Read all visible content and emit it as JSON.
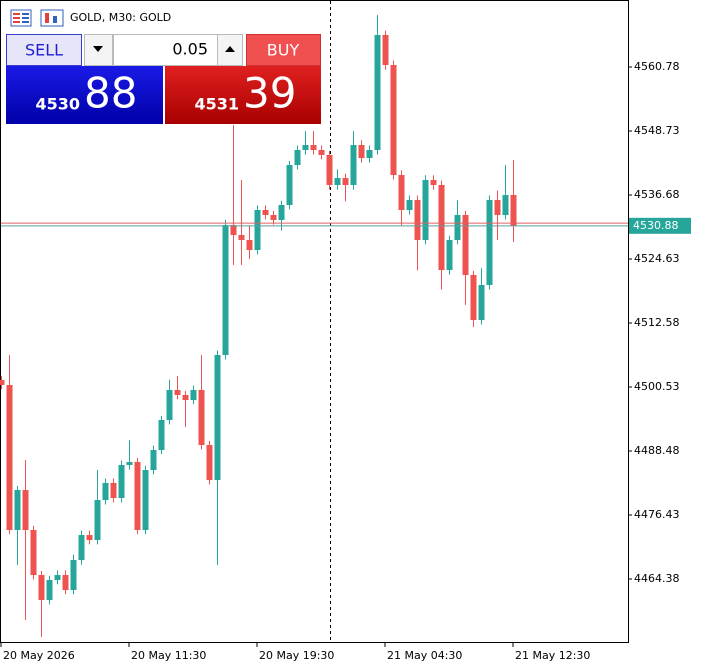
{
  "chart_data": {
    "type": "candlestick",
    "title": "GOLD, M30:  GOLD",
    "categories": [
      "20 May 2026",
      null,
      null,
      null,
      null,
      null,
      null,
      null,
      null,
      null,
      null,
      null,
      null,
      null,
      null,
      null,
      "20 May 11:30",
      null,
      null,
      null,
      null,
      null,
      null,
      null,
      null,
      null,
      null,
      null,
      null,
      null,
      null,
      null,
      "20 May 19:30",
      null,
      null,
      null,
      null,
      null,
      null,
      null,
      null,
      null,
      null,
      null,
      null,
      null,
      null,
      null,
      "21 May 04:30",
      null,
      null,
      null,
      null,
      null,
      null,
      null,
      null,
      null,
      null,
      null,
      null,
      null,
      null,
      null,
      "21 May 12:30"
    ],
    "open": [
      4501.85,
      4500.91,
      4473.61,
      4481.14,
      4473.61,
      4465.13,
      4460.43,
      4464.19,
      4465.13,
      4462.31,
      4467.96,
      4472.66,
      4471.72,
      4479.25,
      4482.46,
      4479.63,
      4485.85,
      4486.41,
      4473.61,
      4484.9,
      4488.67,
      4494.32,
      4499.97,
      4499.03,
      4498.08,
      4499.97,
      4489.61,
      4483.02,
      4506.56,
      4531.03,
      4529.15,
      4528.21,
      4526.33,
      4533.86,
      4532.92,
      4531.98,
      4534.8,
      4542.33,
      4545.16,
      4546.1,
      4545.16,
      4544.22,
      4538.57,
      4539.88,
      4538.57,
      4546.1,
      4543.65,
      4545.16,
      4566.81,
      4561.16,
      4540.45,
      4533.86,
      4535.74,
      4528.21,
      4539.51,
      4538.57,
      4522.56,
      4528.21,
      4532.92,
      4521.62,
      4513.15,
      4519.74,
      4535.74,
      4532.92,
      4536.68
    ],
    "high": [
      4502.6,
      4506.56,
      4481.9,
      4486.79,
      4474.4,
      4465.9,
      4465.0,
      4466.0,
      4466.0,
      4469.0,
      4473.5,
      4473.5,
      4484.9,
      4483.3,
      4483.3,
      4486.7,
      4490.5,
      4487.2,
      4485.7,
      4489.5,
      4495.1,
      4501.9,
      4502.6,
      4499.8,
      4500.8,
      4506.56,
      4490.4,
      4507.4,
      4532.0,
      4549.86,
      4539.51,
      4531.0,
      4534.7,
      4534.7,
      4533.7,
      4535.6,
      4543.1,
      4546.0,
      4548.7,
      4548.7,
      4546.0,
      4545.0,
      4541.5,
      4540.7,
      4548.7,
      4547.0,
      4546.0,
      4570.58,
      4567.6,
      4562.0,
      4541.3,
      4536.6,
      4536.6,
      4540.4,
      4540.4,
      4539.4,
      4529.0,
      4535.7,
      4533.7,
      4522.4,
      4522.9,
      4536.6,
      4537.5,
      4542.33,
      4543.27
    ],
    "low": [
      4500.1,
      4472.8,
      4467.02,
      4456.66,
      4464.3,
      4453.46,
      4459.6,
      4463.4,
      4461.5,
      4461.5,
      4467.1,
      4470.9,
      4470.9,
      4478.4,
      4478.8,
      4478.8,
      4485.0,
      4472.8,
      4472.8,
      4484.1,
      4487.9,
      4493.5,
      4498.2,
      4493.0,
      4497.3,
      4488.8,
      4482.2,
      4467.02,
      4505.7,
      4523.5,
      4523.5,
      4524.6,
      4525.5,
      4532.1,
      4531.1,
      4530.0,
      4534.0,
      4541.5,
      4544.3,
      4544.3,
      4543.4,
      4537.7,
      4537.7,
      4535.5,
      4537.7,
      4542.8,
      4542.8,
      4544.3,
      4560.3,
      4539.6,
      4531.0,
      4533.0,
      4522.5,
      4527.4,
      4537.7,
      4518.9,
      4521.7,
      4527.4,
      4516.0,
      4511.83,
      4512.3,
      4518.9,
      4528.2,
      4532.1,
      4527.83
    ],
    "close": [
      4500.91,
      4473.61,
      4481.14,
      4473.61,
      4465.13,
      4460.43,
      4464.19,
      4465.13,
      4462.31,
      4467.96,
      4472.66,
      4471.72,
      4479.25,
      4482.46,
      4479.63,
      4485.85,
      4486.41,
      4473.61,
      4484.9,
      4488.67,
      4494.32,
      4499.97,
      4499.03,
      4498.08,
      4499.97,
      4489.61,
      4483.02,
      4506.56,
      4531.03,
      4529.15,
      4528.21,
      4526.33,
      4533.86,
      4532.92,
      4531.98,
      4534.8,
      4542.33,
      4545.16,
      4546.1,
      4545.16,
      4544.22,
      4538.57,
      4539.88,
      4538.57,
      4546.1,
      4543.65,
      4545.16,
      4566.81,
      4561.16,
      4540.45,
      4533.86,
      4535.74,
      4528.21,
      4539.51,
      4538.57,
      4522.56,
      4528.21,
      4532.92,
      4521.62,
      4513.15,
      4519.74,
      4535.74,
      4532.92,
      4536.68,
      4530.88
    ],
    "up_color": "#26a69a",
    "down_color": "#ef5350",
    "ylim": [
      4452.52,
      4573.4
    ],
    "yticks": [
      4464.38,
      4476.43,
      4488.48,
      4500.53,
      4512.58,
      4524.63,
      4536.68,
      4548.73,
      4560.78
    ],
    "last_price": 4530.88,
    "ask_price": 4531.39,
    "grid": false
  },
  "trade_panel": {
    "sell_label": "SELL",
    "volume": "0.05",
    "buy_label": "BUY",
    "bid_big": "4530",
    "bid_pips": "88",
    "ask_big": "4531",
    "ask_pips": "39"
  }
}
